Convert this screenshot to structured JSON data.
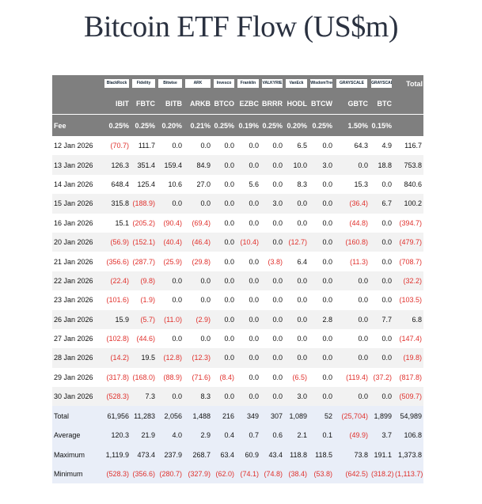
{
  "header": {
    "title": "Bitcoin ETF Flow (US$m)"
  },
  "table": {
    "logos": [
      "BlackRock",
      "Fidelity",
      "Bitwise",
      "ARK",
      "Invesco",
      "Franklin",
      "VALKYRIE",
      "VanEck",
      "WisdomTree",
      "GRAYSCALE",
      "GRAYSCALE"
    ],
    "total_label": "Total",
    "tickers": [
      "IBIT",
      "FBTC",
      "BITB",
      "ARKB",
      "BTCO",
      "EZBC",
      "BRRR",
      "HODL",
      "BTCW",
      "GBTC",
      "BTC"
    ],
    "fee_label": "Fee",
    "fees": [
      "0.25%",
      "0.25%",
      "0.20%",
      "0.21%",
      "0.25%",
      "0.19%",
      "0.25%",
      "0.20%",
      "0.25%",
      "1.50%",
      "0.15%"
    ],
    "rows": [
      {
        "date": "12 Jan 2026",
        "values": [
          "(70.7)",
          "111.7",
          "0.0",
          "0.0",
          "0.0",
          "0.0",
          "0.0",
          "6.5",
          "0.0",
          "64.3",
          "4.9",
          "116.7"
        ]
      },
      {
        "date": "13 Jan 2026",
        "values": [
          "126.3",
          "351.4",
          "159.4",
          "84.9",
          "0.0",
          "0.0",
          "0.0",
          "10.0",
          "3.0",
          "0.0",
          "18.8",
          "753.8"
        ]
      },
      {
        "date": "14 Jan 2026",
        "values": [
          "648.4",
          "125.4",
          "10.6",
          "27.0",
          "0.0",
          "5.6",
          "0.0",
          "8.3",
          "0.0",
          "15.3",
          "0.0",
          "840.6"
        ]
      },
      {
        "date": "15 Jan 2026",
        "values": [
          "315.8",
          "(188.9)",
          "0.0",
          "0.0",
          "0.0",
          "0.0",
          "3.0",
          "0.0",
          "0.0",
          "(36.4)",
          "6.7",
          "100.2"
        ]
      },
      {
        "date": "16 Jan 2026",
        "values": [
          "15.1",
          "(205.2)",
          "(90.4)",
          "(69.4)",
          "0.0",
          "0.0",
          "0.0",
          "0.0",
          "0.0",
          "(44.8)",
          "0.0",
          "(394.7)"
        ]
      },
      {
        "date": "20 Jan 2026",
        "values": [
          "(56.9)",
          "(152.1)",
          "(40.4)",
          "(46.4)",
          "0.0",
          "(10.4)",
          "0.0",
          "(12.7)",
          "0.0",
          "(160.8)",
          "0.0",
          "(479.7)"
        ]
      },
      {
        "date": "21 Jan 2026",
        "values": [
          "(356.6)",
          "(287.7)",
          "(25.9)",
          "(29.8)",
          "0.0",
          "0.0",
          "(3.8)",
          "6.4",
          "0.0",
          "(11.3)",
          "0.0",
          "(708.7)"
        ]
      },
      {
        "date": "22 Jan 2026",
        "values": [
          "(22.4)",
          "(9.8)",
          "0.0",
          "0.0",
          "0.0",
          "0.0",
          "0.0",
          "0.0",
          "0.0",
          "0.0",
          "0.0",
          "(32.2)"
        ]
      },
      {
        "date": "23 Jan 2026",
        "values": [
          "(101.6)",
          "(1.9)",
          "0.0",
          "0.0",
          "0.0",
          "0.0",
          "0.0",
          "0.0",
          "0.0",
          "0.0",
          "0.0",
          "(103.5)"
        ]
      },
      {
        "date": "26 Jan 2026",
        "values": [
          "15.9",
          "(5.7)",
          "(11.0)",
          "(2.9)",
          "0.0",
          "0.0",
          "0.0",
          "0.0",
          "2.8",
          "0.0",
          "7.7",
          "6.8"
        ]
      },
      {
        "date": "27 Jan 2026",
        "values": [
          "(102.8)",
          "(44.6)",
          "0.0",
          "0.0",
          "0.0",
          "0.0",
          "0.0",
          "0.0",
          "0.0",
          "0.0",
          "0.0",
          "(147.4)"
        ]
      },
      {
        "date": "28 Jan 2026",
        "values": [
          "(14.2)",
          "19.5",
          "(12.8)",
          "(12.3)",
          "0.0",
          "0.0",
          "0.0",
          "0.0",
          "0.0",
          "0.0",
          "0.0",
          "(19.8)"
        ]
      },
      {
        "date": "29 Jan 2026",
        "values": [
          "(317.8)",
          "(168.0)",
          "(88.9)",
          "(71.6)",
          "(8.4)",
          "0.0",
          "0.0",
          "(6.5)",
          "0.0",
          "(119.4)",
          "(37.2)",
          "(817.8)"
        ]
      },
      {
        "date": "30 Jan 2026",
        "values": [
          "(528.3)",
          "7.3",
          "0.0",
          "8.3",
          "0.0",
          "0.0",
          "0.0",
          "3.0",
          "0.0",
          "0.0",
          "0.0",
          "(509.7)"
        ]
      }
    ],
    "summary": [
      {
        "label": "Total",
        "values": [
          "61,956",
          "11,283",
          "2,056",
          "1,488",
          "216",
          "349",
          "307",
          "1,089",
          "52",
          "(25,704)",
          "1,899",
          "54,989"
        ]
      },
      {
        "label": "Average",
        "values": [
          "120.3",
          "21.9",
          "4.0",
          "2.9",
          "0.4",
          "0.7",
          "0.6",
          "2.1",
          "0.1",
          "(49.9)",
          "3.7",
          "106.8"
        ]
      },
      {
        "label": "Maximum",
        "values": [
          "1,119.9",
          "473.4",
          "237.9",
          "268.7",
          "63.4",
          "60.9",
          "43.4",
          "118.8",
          "118.5",
          "73.8",
          "191.1",
          "1,373.8"
        ]
      },
      {
        "label": "Minimum",
        "values": [
          "(528.3)",
          "(356.6)",
          "(280.7)",
          "(327.9)",
          "(62.0)",
          "(74.1)",
          "(74.8)",
          "(38.4)",
          "(53.8)",
          "(642.5)",
          "(318.2)",
          "(1,113.7)"
        ]
      }
    ]
  }
}
